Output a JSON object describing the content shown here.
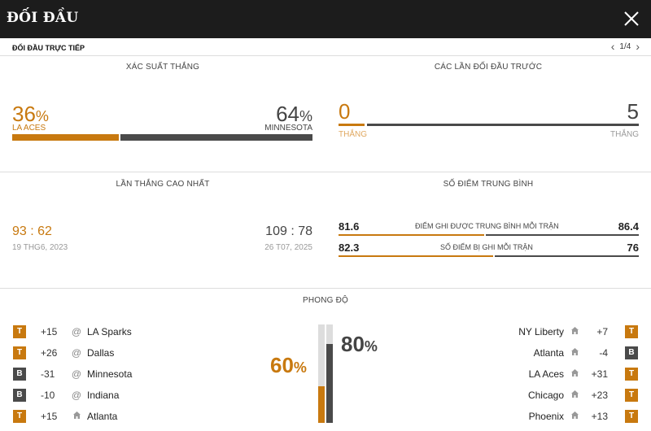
{
  "header": {
    "title": "ĐỐI ĐẦU"
  },
  "subheader": {
    "label": "ĐỐI ĐẦU TRỰC TIẾP",
    "page": "1/4"
  },
  "win_prob": {
    "title": "XÁC SUẤT THẮNG",
    "home_value": "36",
    "home_team": "LA ACES",
    "away_value": "64",
    "away_team": "MINNESOTA",
    "home_fraction": 0.36,
    "pct_sign": "%"
  },
  "previous": {
    "title": "CÁC LẦN ĐỐI ĐẦU TRƯỚC",
    "home_value": "0",
    "home_label": "THẮNG",
    "away_value": "5",
    "away_label": "THẮNG"
  },
  "biggest_win": {
    "title": "LẦN THẮNG CAO NHẤT",
    "home_score": "93 : 62",
    "home_date": "19 THG6, 2023",
    "away_score": "109 : 78",
    "away_date": "26 T07, 2025"
  },
  "avg_points": {
    "title": "SỐ ĐIỂM TRUNG BÌNH",
    "rows": [
      {
        "label": "ĐIỂM GHI ĐƯỢC TRUNG BÌNH MỖI TRẬN",
        "home": "81.6",
        "away": "86.4"
      },
      {
        "label": "SỐ ĐIỂM BỊ GHI MỖI TRẬN",
        "home": "82.3",
        "away": "76"
      }
    ]
  },
  "form": {
    "title": "PHONG ĐỘ",
    "home_pct": "60",
    "away_pct": "80",
    "pct_sign": "%",
    "home_fraction": 0.6,
    "away_fraction": 0.8,
    "home": [
      {
        "result": "T",
        "diff": "+15",
        "venue": "@",
        "team": "LA Sparks"
      },
      {
        "result": "T",
        "diff": "+26",
        "venue": "@",
        "team": "Dallas"
      },
      {
        "result": "B",
        "diff": "-31",
        "venue": "@",
        "team": "Minnesota"
      },
      {
        "result": "B",
        "diff": "-10",
        "venue": "@",
        "team": "Indiana"
      },
      {
        "result": "T",
        "diff": "+15",
        "venue": "home",
        "team": "Atlanta"
      }
    ],
    "away": [
      {
        "result": "T",
        "diff": "+7",
        "venue": "home",
        "team": "NY Liberty"
      },
      {
        "result": "B",
        "diff": "-4",
        "venue": "home",
        "team": "Atlanta"
      },
      {
        "result": "T",
        "diff": "+31",
        "venue": "home",
        "team": "LA Aces"
      },
      {
        "result": "T",
        "diff": "+23",
        "venue": "home",
        "team": "Chicago"
      },
      {
        "result": "T",
        "diff": "+13",
        "venue": "home",
        "team": "Phoenix"
      }
    ]
  },
  "colors": {
    "accent": "#c8790f",
    "dark": "#4a4a4a",
    "track": "#dddddd"
  }
}
